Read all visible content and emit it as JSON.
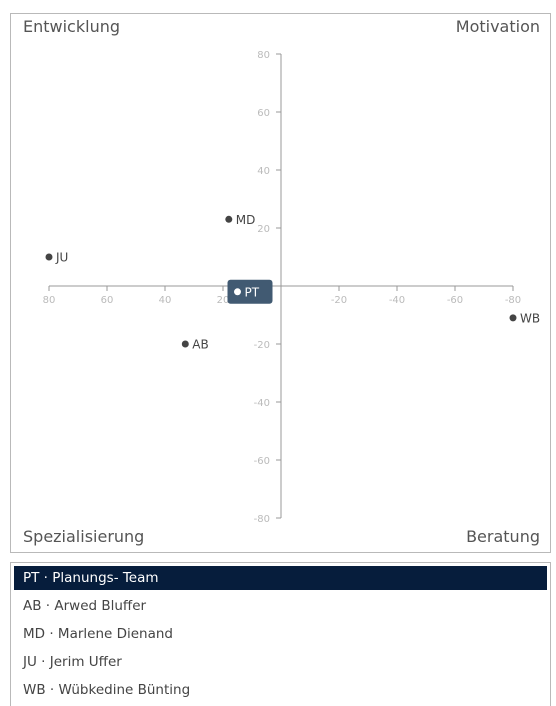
{
  "quadrants": {
    "top_left": "Entwicklung",
    "top_right": "Motivation",
    "bottom_left": "Spezialisierung",
    "bottom_right": "Beratung"
  },
  "chart_data": {
    "type": "scatter",
    "x_ticks": [
      "80",
      "60",
      "40",
      "20",
      "-20",
      "-40",
      "-60",
      "-80"
    ],
    "y_ticks": [
      "80",
      "60",
      "40",
      "20",
      "-20",
      "-40",
      "-60",
      "-80"
    ],
    "xlim": [
      80,
      -80
    ],
    "ylim": [
      -80,
      80
    ],
    "x_reversed": true,
    "points": [
      {
        "label": "MD",
        "x": 18,
        "y": 23
      },
      {
        "label": "JU",
        "x": 80,
        "y": 10
      },
      {
        "label": "PT",
        "x": 15,
        "y": -2,
        "highlighted": true
      },
      {
        "label": "AB",
        "x": 33,
        "y": -20
      },
      {
        "label": "WB",
        "x": -80,
        "y": -11
      }
    ]
  },
  "list": {
    "items": [
      {
        "label": "PT · Planungs- Team",
        "selected": true
      },
      {
        "label": "AB · Arwed Bluffer",
        "selected": false
      },
      {
        "label": "MD · Marlene Dienand",
        "selected": false
      },
      {
        "label": "JU · Jerim Uffer",
        "selected": false
      },
      {
        "label": "WB · Wübkedine Bünting",
        "selected": false
      }
    ]
  },
  "colors": {
    "point": "#444444",
    "highlight_bg": "#415a72",
    "selected_bg": "#061d3c",
    "axis": "#999999"
  }
}
